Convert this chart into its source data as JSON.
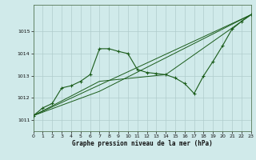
{
  "xlabel": "Graphe pression niveau de la mer (hPa)",
  "xlim": [
    0,
    23
  ],
  "ylim": [
    1010.5,
    1016.2
  ],
  "yticks": [
    1011,
    1012,
    1013,
    1014,
    1015
  ],
  "xticks": [
    0,
    1,
    2,
    3,
    4,
    5,
    6,
    7,
    8,
    9,
    10,
    11,
    12,
    13,
    14,
    15,
    16,
    17,
    18,
    19,
    20,
    21,
    22,
    23
  ],
  "bg_color": "#d0eaea",
  "grid_color": "#b0cccc",
  "line_color": "#1a5c1a",
  "line1": {
    "x": [
      0,
      1,
      2,
      3,
      4,
      5,
      6,
      7,
      8,
      9,
      10,
      11,
      12,
      13,
      14,
      15,
      16,
      17,
      18,
      19,
      20,
      21,
      22,
      23
    ],
    "y": [
      1011.2,
      1011.55,
      1011.75,
      1012.45,
      1012.55,
      1012.75,
      1013.05,
      1014.22,
      1014.22,
      1014.1,
      1014.0,
      1013.28,
      1013.15,
      1013.1,
      1013.05,
      1012.9,
      1012.65,
      1012.2,
      1013.0,
      1013.65,
      1014.35,
      1015.1,
      1015.45,
      1015.75
    ]
  },
  "line2": {
    "x": [
      0,
      23
    ],
    "y": [
      1011.2,
      1015.75
    ]
  },
  "line3": {
    "x": [
      0,
      7,
      14,
      23
    ],
    "y": [
      1011.2,
      1012.75,
      1013.05,
      1015.75
    ]
  },
  "line4": {
    "x": [
      0,
      7,
      23
    ],
    "y": [
      1011.2,
      1012.3,
      1015.75
    ]
  }
}
